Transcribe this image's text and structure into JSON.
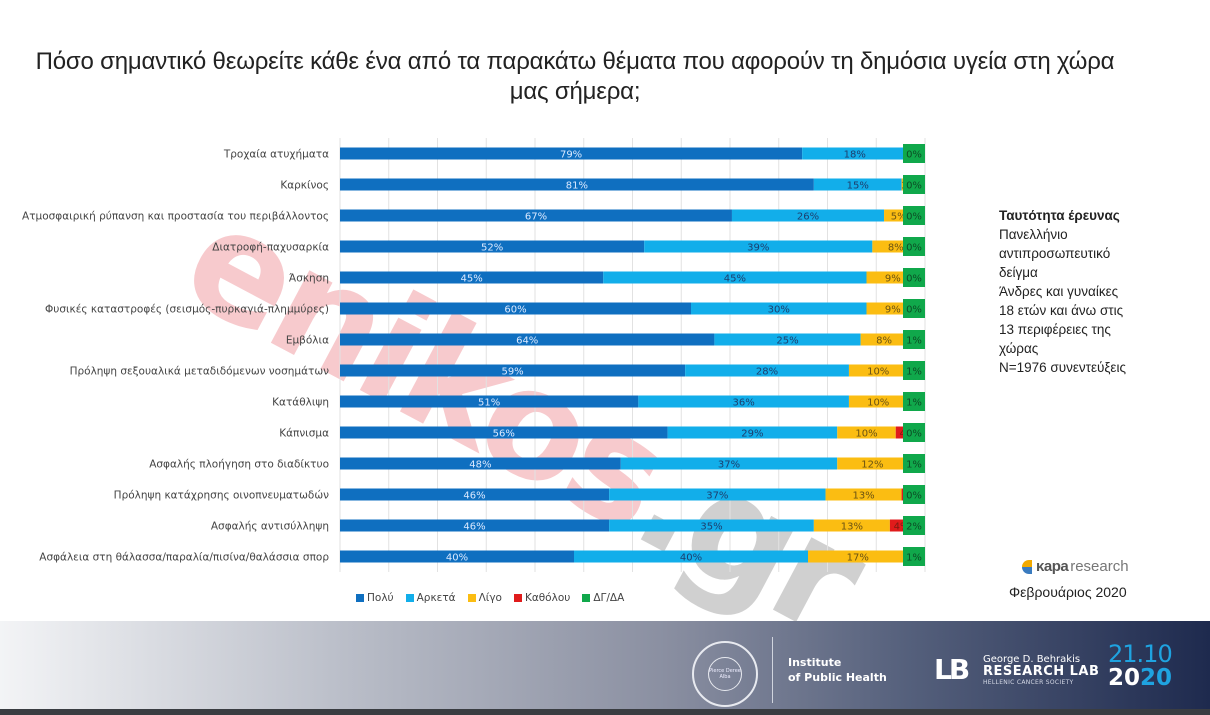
{
  "title": "Πόσο σημαντικό θεωρείτε κάθε ένα από τα παρακάτω θέματα που αφορούν τη δημόσια υγεία στη χώρα μας σήμερα;",
  "chart_data": {
    "type": "bar",
    "orientation": "horizontal",
    "stacked": true,
    "title": "Πόσο σημαντικό θεωρείτε κάθε ένα από τα παρακάτω θέματα που αφορούν τη δημόσια υγεία στη χώρα μας σήμερα;",
    "xlabel": "",
    "ylabel": "",
    "xlim": [
      0,
      100
    ],
    "grid": true,
    "legend_position": "bottom",
    "categories": [
      "Τροχαία ατυχήματα",
      "Καρκίνος",
      "Ατμοσφαιρική ρύπανση και προστασία του περιβάλλοντος",
      "Διατροφή-παχυσαρκία",
      "Άσκηση",
      "Φυσικές καταστροφές (σεισμός-πυρκαγιά-πλημμύρες)",
      "Εμβόλια",
      "Πρόληψη σεξουαλικά μεταδιδόμενων νοσημάτων",
      "Κατάθλιψη",
      "Κάπνισμα",
      "Ασφαλής πλοήγηση στο διαδίκτυο",
      "Πρόληψη κατάχρησης οινοπνευματωδών",
      "Ασφαλής αντισύλληψη",
      "Ασφάλεια στη θάλασσα/παραλία/πισίνα/θαλάσσια σπορ"
    ],
    "series": [
      {
        "name": "Πολύ",
        "color": "#0f6fc0",
        "label_color": "#dbe9ff",
        "values": [
          79,
          81,
          67,
          52,
          45,
          60,
          64,
          59,
          51,
          56,
          48,
          46,
          46,
          40
        ]
      },
      {
        "name": "Αρκετά",
        "color": "#12aeea",
        "label_color": "#1d3f6e",
        "values": [
          18,
          15,
          26,
          39,
          45,
          30,
          25,
          28,
          36,
          29,
          37,
          37,
          35,
          40
        ]
      },
      {
        "name": "Λίγο",
        "color": "#fbbd12",
        "label_color": "#6b5313",
        "values": [
          2,
          2,
          5,
          8,
          9,
          9,
          8,
          10,
          10,
          10,
          12,
          13,
          13,
          17
        ]
      },
      {
        "name": "Καθόλου",
        "color": "#e01b1b",
        "label_color": "#7a1a10",
        "values": [
          0,
          0,
          0,
          0,
          0,
          0,
          1,
          1,
          1,
          4,
          3,
          3,
          4,
          3
        ]
      },
      {
        "name": "ΔΓ/ΔΑ",
        "color": "#10a84b",
        "label_color": "#0c4d25",
        "values": [
          0,
          0,
          0,
          0,
          0,
          0,
          1,
          1,
          1,
          0,
          1,
          0,
          2,
          1
        ]
      }
    ]
  },
  "legend": [
    {
      "label": "Πολύ",
      "color": "#0f6fc0"
    },
    {
      "label": "Αρκετά",
      "color": "#12aeea"
    },
    {
      "label": "Λίγο",
      "color": "#fbbd12"
    },
    {
      "label": "Καθόλου",
      "color": "#e01b1b"
    },
    {
      "label": "ΔΓ/ΔΑ",
      "color": "#10a84b"
    }
  ],
  "survey_info": {
    "heading": "Ταυτότητα έρευνας",
    "lines": [
      "Πανελλήνιο",
      "αντιπροσωπευτικό",
      "δείγμα",
      "Άνδρες και γυναίκες",
      "18 ετών και άνω στις",
      "13 περιφέρειες της",
      "χώρας",
      "N=1976 συνεντεύξεις"
    ]
  },
  "brand": {
    "part1": "κapa",
    "part2": "research"
  },
  "date_label": "Φεβρουάριος 2020",
  "watermark": {
    "part1": "enikos",
    "part2": ".gr"
  },
  "footer": {
    "seal_text": "Pierce Deree Alba",
    "institute_line1": "Institute",
    "institute_line2": "of Public Health",
    "lab_mark": "LB",
    "lab_line1": "George D. Behrakis",
    "lab_line2": "RESEARCH LAB",
    "lab_line3": "HELLENIC CANCER SOCIETY",
    "date_top": "21.10",
    "date_year_a": "20",
    "date_year_b": "20"
  }
}
